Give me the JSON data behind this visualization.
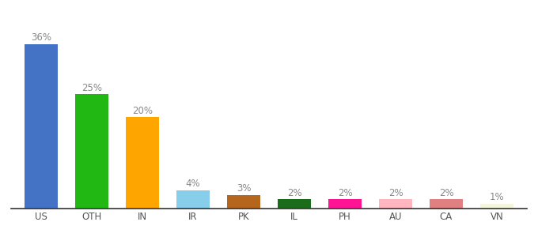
{
  "categories": [
    "US",
    "OTH",
    "IN",
    "IR",
    "PK",
    "IL",
    "PH",
    "AU",
    "CA",
    "VN"
  ],
  "values": [
    36,
    25,
    20,
    4,
    3,
    2,
    2,
    2,
    2,
    1
  ],
  "bar_colors": [
    "#4472c4",
    "#22b814",
    "#ffa500",
    "#87ceeb",
    "#b5651d",
    "#1a6b1a",
    "#ff1493",
    "#ffb6c1",
    "#e08080",
    "#f5f5dc"
  ],
  "labels": [
    "36%",
    "25%",
    "20%",
    "4%",
    "3%",
    "2%",
    "2%",
    "2%",
    "2%",
    "1%"
  ],
  "background_color": "#ffffff",
  "ylim": [
    0,
    42
  ],
  "label_fontsize": 8.5,
  "tick_fontsize": 8.5,
  "label_color": "#888888",
  "tick_color": "#555555"
}
